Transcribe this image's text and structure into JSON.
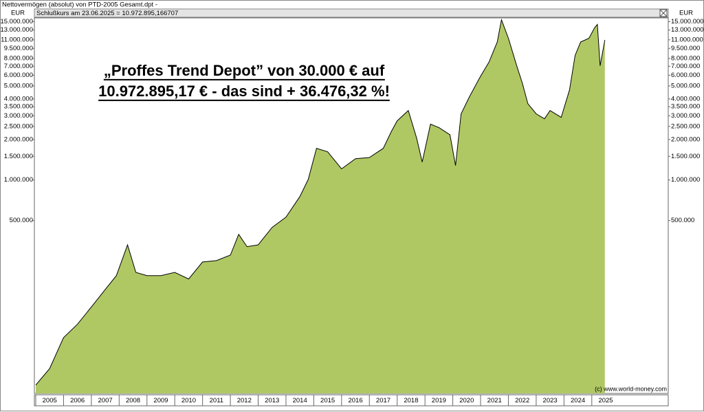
{
  "chart_data": {
    "type": "area",
    "title": "Nettovermögen (absolut) von PTD-2005 Gesamt.dpt -",
    "subtitle": "Schlußkurs am 23.06.2025 = 10.972.895,166707",
    "y_label": "EUR",
    "annotations": [
      "„Proffes Trend Depot” von 30.000 € auf",
      "10.972.895,17 € - das sind + 36.476,32 %!"
    ],
    "source": "(c) www.world-money.com",
    "x": [
      2005.0,
      2005.5,
      2006.0,
      2006.5,
      2007.0,
      2007.5,
      2007.9,
      2008.3,
      2008.6,
      2009.0,
      2009.5,
      2010.0,
      2010.5,
      2011.0,
      2011.5,
      2012.0,
      2012.3,
      2012.6,
      2013.0,
      2013.5,
      2014.0,
      2014.5,
      2014.8,
      2015.1,
      2015.5,
      2016.0,
      2016.5,
      2017.0,
      2017.5,
      2017.8,
      2018.0,
      2018.4,
      2018.7,
      2018.9,
      2019.2,
      2019.5,
      2019.9,
      2020.1,
      2020.3,
      2020.6,
      2021.0,
      2021.3,
      2021.6,
      2021.75,
      2022.0,
      2022.3,
      2022.5,
      2022.7,
      2023.0,
      2023.3,
      2023.5,
      2023.9,
      2024.2,
      2024.4,
      2024.6,
      2024.9,
      2025.1,
      2025.2,
      2025.3,
      2025.47
    ],
    "values": [
      30000,
      39800,
      67500,
      85000,
      114000,
      154000,
      195000,
      330000,
      206000,
      195000,
      195000,
      206000,
      184000,
      246000,
      252000,
      277000,
      395000,
      320000,
      330000,
      444000,
      530000,
      754000,
      1010000,
      1720000,
      1620000,
      1210000,
      1440000,
      1470000,
      1720000,
      2310000,
      2750000,
      3280000,
      2050000,
      1360000,
      2600000,
      2450000,
      2170000,
      1280000,
      3100000,
      4160000,
      5900000,
      7500000,
      10600000,
      15500000,
      11300000,
      7050000,
      5260000,
      3690000,
      3100000,
      2850000,
      3280000,
      2920000,
      4670000,
      8420000,
      10600000,
      11300000,
      13500000,
      14300000,
      7050000,
      10972895
    ],
    "color": "#b0c864",
    "line_color": "#000000",
    "xlim": [
      2005,
      2027.75
    ],
    "xticks": [
      2005,
      2006,
      2007,
      2008,
      2009,
      2010,
      2011,
      2012,
      2013,
      2014,
      2015,
      2016,
      2017,
      2018,
      2019,
      2020,
      2021,
      2022,
      2023,
      2024,
      2025
    ],
    "ylim": [
      26000,
      16000000
    ],
    "yticks": [
      {
        "value": 15000000,
        "label": "15.000.000"
      },
      {
        "value": 13000000,
        "label": "13.000.000"
      },
      {
        "value": 11000000,
        "label": "11.000.000"
      },
      {
        "value": 9500000,
        "label": "9.500.000"
      },
      {
        "value": 8000000,
        "label": "8.000.000"
      },
      {
        "value": 7000000,
        "label": "7.000.000"
      },
      {
        "value": 6000000,
        "label": "6.000.000"
      },
      {
        "value": 5000000,
        "label": "5.000.000"
      },
      {
        "value": 4000000,
        "label": "4.000.000"
      },
      {
        "value": 3500000,
        "label": "3.500.000"
      },
      {
        "value": 3000000,
        "label": "3.000.000"
      },
      {
        "value": 2500000,
        "label": "2.500.000"
      },
      {
        "value": 2000000,
        "label": "2.000.000"
      },
      {
        "value": 1500000,
        "label": "1.500.000"
      },
      {
        "value": 1000000,
        "label": "1.000.000"
      },
      {
        "value": 500000,
        "label": "500.000"
      }
    ],
    "log_y": true,
    "grid": false
  }
}
